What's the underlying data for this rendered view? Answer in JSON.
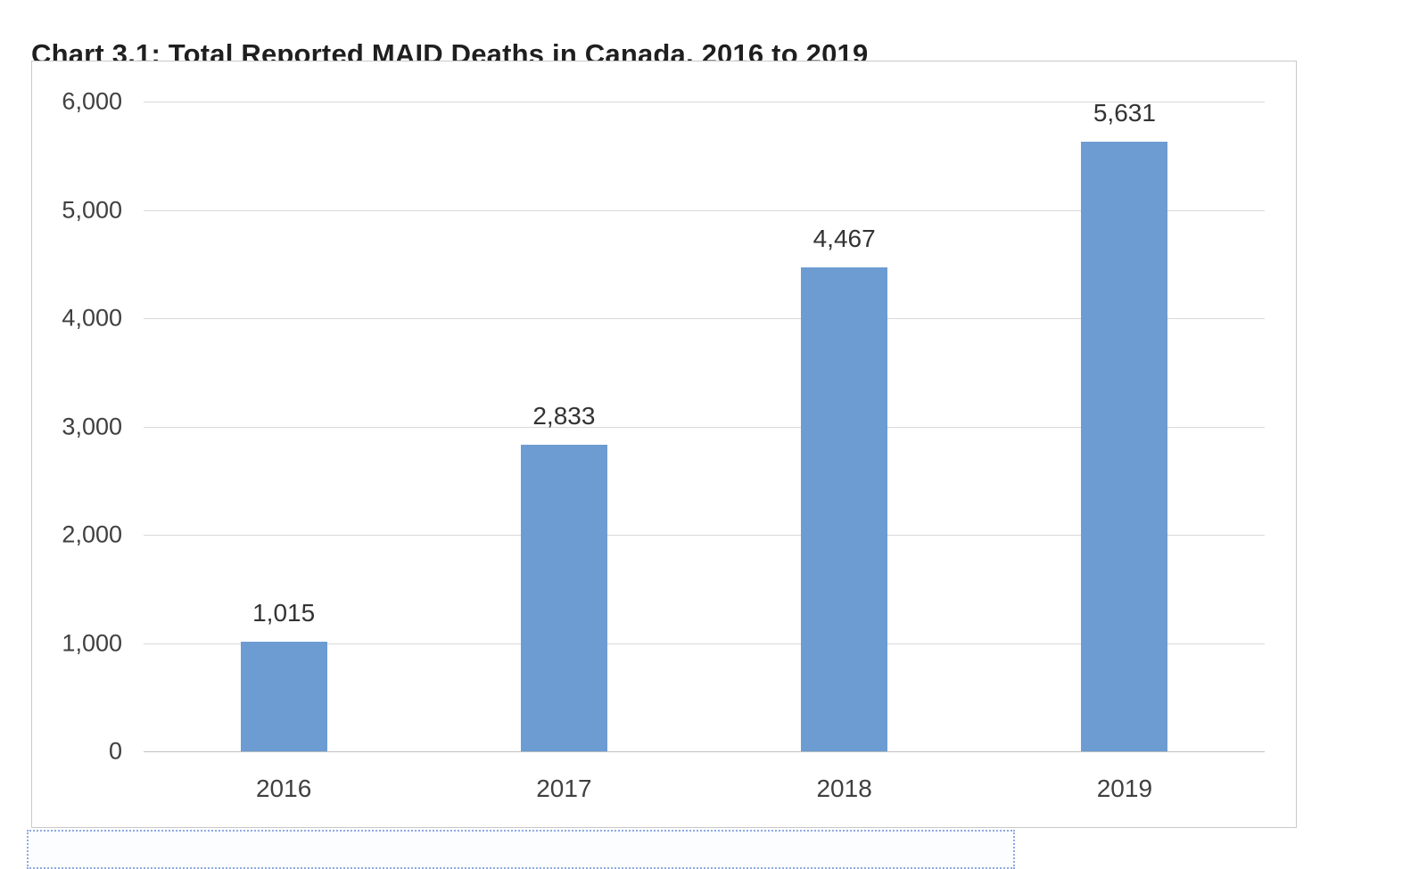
{
  "chart_data": {
    "type": "bar",
    "title": "Chart 3.1: Total Reported MAID Deaths in Canada, 2016 to 2019",
    "categories": [
      "2016",
      "2017",
      "2018",
      "2019"
    ],
    "values": [
      1015,
      2833,
      4467,
      5631
    ],
    "value_labels": [
      "1,015",
      "2,833",
      "4,467",
      "5,631"
    ],
    "xlabel": "",
    "ylabel": "",
    "ylim": [
      0,
      6000
    ],
    "ytick_step": 1000,
    "ytick_labels": [
      "0",
      "1,000",
      "2,000",
      "3,000",
      "4,000",
      "5,000",
      "6,000"
    ],
    "grid": true,
    "legend": false,
    "bar_color": "#6C9CD2",
    "gridline_color": "#d9d9d9",
    "axis_label_color": "#404040",
    "title_color": "#1f1f1f"
  }
}
